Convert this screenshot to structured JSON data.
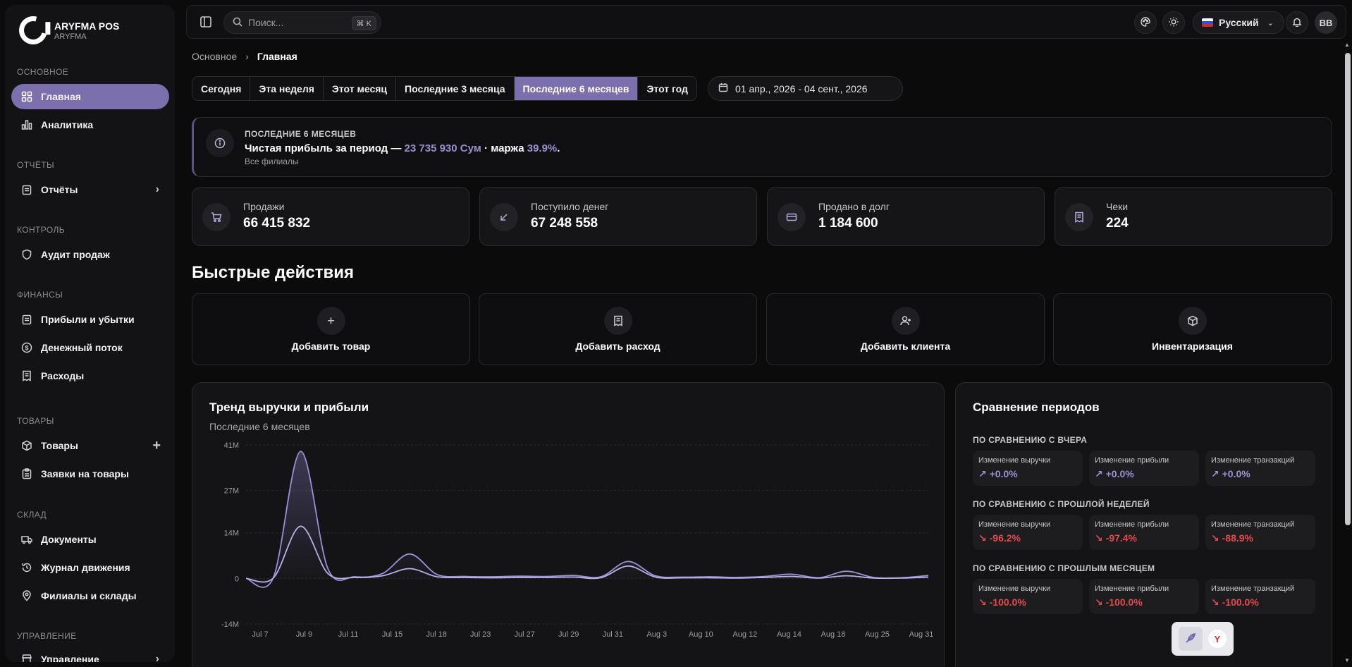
{
  "brand": {
    "name": "ARYFMA POS",
    "sub": "ARYFMA"
  },
  "sidebar": {
    "sections": [
      {
        "label": "ОСНОВНОЕ"
      },
      {
        "label": "ОТЧЁТЫ"
      },
      {
        "label": "КОНТРОЛЬ"
      },
      {
        "label": "ФИНАНСЫ"
      },
      {
        "label": "ТОВАРЫ"
      },
      {
        "label": "СКЛАД"
      },
      {
        "label": "УПРАВЛЕНИЕ"
      }
    ],
    "items": [
      {
        "label": "Главная",
        "icon": "grid-icon"
      },
      {
        "label": "Аналитика",
        "icon": "bar-chart-icon"
      },
      {
        "label": "Отчёты",
        "icon": "clipboard-icon"
      },
      {
        "label": "Аудит продаж",
        "icon": "shield-icon"
      },
      {
        "label": "Прибыли и убытки",
        "icon": "clipboard-icon"
      },
      {
        "label": "Денежный поток",
        "icon": "dollar-circle-icon"
      },
      {
        "label": "Расходы",
        "icon": "receipt-icon"
      },
      {
        "label": "Товары",
        "icon": "box-icon"
      },
      {
        "label": "Заявки на товары",
        "icon": "clipboard-list-icon"
      },
      {
        "label": "Документы",
        "icon": "truck-icon"
      },
      {
        "label": "Журнал движения",
        "icon": "history-icon"
      },
      {
        "label": "Филиалы и склады",
        "icon": "map-pin-icon"
      },
      {
        "label": "Управление",
        "icon": "store-icon"
      }
    ]
  },
  "topbar": {
    "search_placeholder": "Поиск...",
    "search_shortcut": "⌘ K",
    "language": "Русский",
    "avatar_initials": "BB"
  },
  "breadcrumb": {
    "root": "Основное",
    "current": "Главная"
  },
  "periods": [
    "Сегодня",
    "Эта неделя",
    "Этот месяц",
    "Последние 3 месяца",
    "Последние 6 месяцев",
    "Этот год"
  ],
  "active_period": "Последние 6 месяцев",
  "date_range": "01 апр., 2026 - 04 сент., 2026",
  "summary": {
    "kicker": "ПОСЛЕДНИЕ 6 МЕСЯЦЕВ",
    "text_prefix": "Чистая прибыль за период — ",
    "profit": "23 735 930 Сум",
    "text_mid": " · маржа ",
    "margin": "39.9%",
    "text_suffix": ".",
    "scope": "Все филиалы"
  },
  "kpis": [
    {
      "label": "Продажи",
      "value": "66 415 832",
      "icon": "cart-icon"
    },
    {
      "label": "Поступило денег",
      "value": "67 248 558",
      "icon": "arrow-down-left-icon"
    },
    {
      "label": "Продано в долг",
      "value": "1 184 600",
      "icon": "credit-card-icon"
    },
    {
      "label": "Чеки",
      "value": "224",
      "icon": "receipt-icon"
    }
  ],
  "quick_actions": {
    "title": "Быстрые действия",
    "items": [
      {
        "label": "Добавить товар",
        "icon": "plus-icon"
      },
      {
        "label": "Добавить расход",
        "icon": "receipt-icon"
      },
      {
        "label": "Добавить клиента",
        "icon": "user-plus-icon"
      },
      {
        "label": "Инвентаризация",
        "icon": "box-icon"
      }
    ]
  },
  "trend": {
    "title": "Тренд выручки и прибыли",
    "subtitle": "Последние 6 месяцев"
  },
  "chart_data": {
    "type": "area",
    "title": "Тренд выручки и прибыли",
    "subtitle": "Последние 6 месяцев",
    "x_ticks": [
      "Jul 7",
      "Jul 9",
      "Jul 11",
      "Jul 15",
      "Jul 18",
      "Jul 23",
      "Jul 27",
      "Jul 29",
      "Jul 31",
      "Aug 3",
      "Aug 10",
      "Aug 12",
      "Aug 14",
      "Aug 18",
      "Aug 25",
      "Aug 31"
    ],
    "y_ticks": [
      "41M",
      "27M",
      "14M",
      "0",
      "-14M"
    ],
    "ylim": [
      -14,
      41
    ],
    "grid": true,
    "x": [
      0,
      0.6,
      1.2,
      1.8,
      2.4,
      3.0,
      3.6,
      4.2,
      4.8,
      5.4,
      6.0,
      6.6,
      7.2,
      7.8,
      8.4,
      9.0,
      9.6,
      10.2,
      10.8,
      11.4,
      12.0,
      12.6,
      13.2,
      13.8,
      14.4,
      15.0
    ],
    "series": [
      {
        "values": [
          0,
          0.2,
          39,
          3,
          0.5,
          1.5,
          7.5,
          1.2,
          0.6,
          0.5,
          0.7,
          0.6,
          0.9,
          0.5,
          5.2,
          0.8,
          0.4,
          0.5,
          0.3,
          0.6,
          1.3,
          0.2,
          2.2,
          0.3,
          0.2,
          0.9
        ]
      },
      {
        "values": [
          0,
          0.1,
          16,
          1.5,
          0.3,
          0.8,
          3.0,
          0.5,
          0.3,
          0.2,
          0.3,
          0.3,
          0.4,
          0.2,
          3.8,
          0.4,
          0.2,
          0.2,
          0.1,
          0.3,
          0.6,
          0.1,
          0.8,
          0.1,
          0.1,
          0.4
        ]
      }
    ]
  },
  "comparison": {
    "title": "Сравнение периодов",
    "groups": [
      {
        "heading": "ПО СРАВНЕНИЮ С ВЧЕРА",
        "cells": [
          {
            "label": "Изменение выручки",
            "value": "+0.0%",
            "sign": "pos"
          },
          {
            "label": "Изменение прибыли",
            "value": "+0.0%",
            "sign": "pos"
          },
          {
            "label": "Изменение транзакций",
            "value": "+0.0%",
            "sign": "pos"
          }
        ]
      },
      {
        "heading": "ПО СРАВНЕНИЮ С ПРОШЛОЙ НЕДЕЛЕЙ",
        "cells": [
          {
            "label": "Изменение выручки",
            "value": "-96.2%",
            "sign": "neg"
          },
          {
            "label": "Изменение прибыли",
            "value": "-97.4%",
            "sign": "neg"
          },
          {
            "label": "Изменение транзакций",
            "value": "-88.9%",
            "sign": "neg"
          }
        ]
      },
      {
        "heading": "ПО СРАВНЕНИЮ С ПРОШЛЫМ МЕСЯЦЕМ",
        "cells": [
          {
            "label": "Изменение выручки",
            "value": "-100.0%",
            "sign": "neg"
          },
          {
            "label": "Изменение прибыли",
            "value": "-100.0%",
            "sign": "neg"
          },
          {
            "label": "Изменение транзакций",
            "value": "-100.0%",
            "sign": "neg"
          }
        ]
      }
    ]
  },
  "colors": {
    "accent": "#7c6fae",
    "accent_text": "#9a8fd0",
    "negative": "#e5484d",
    "background": "#0b0b0c"
  }
}
